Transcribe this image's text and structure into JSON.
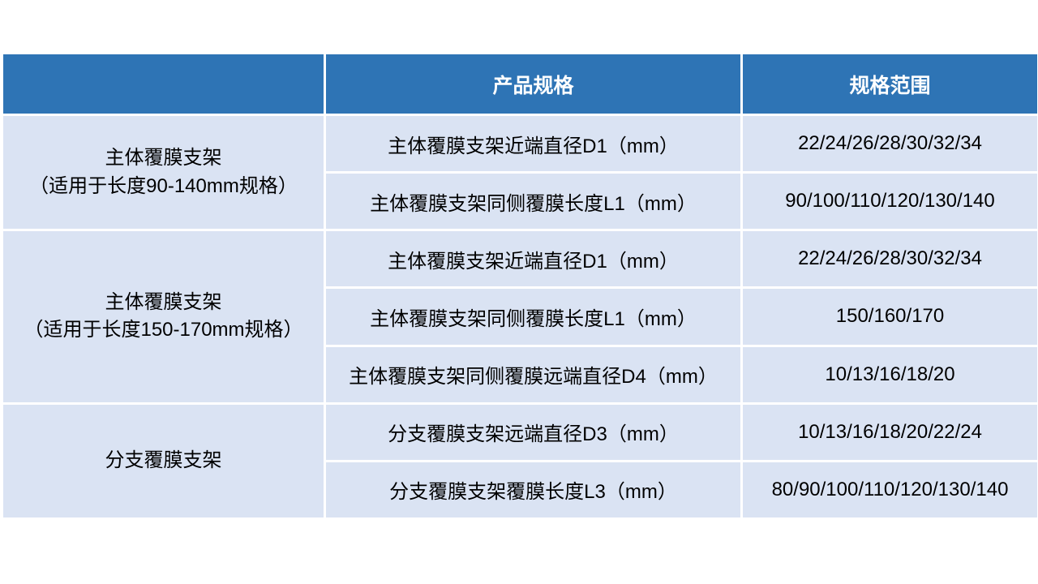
{
  "table": {
    "header": {
      "category": "",
      "product_spec": "产品规格",
      "spec_range": "规格范围"
    },
    "groups": [
      {
        "label_line1": "主体覆膜支架",
        "label_line2": "（适用于长度90-140mm规格）",
        "rows": [
          {
            "spec": "主体覆膜支架近端直径D1（mm）",
            "range": "22/24/26/28/30/32/34"
          },
          {
            "spec": "主体覆膜支架同侧覆膜长度L1（mm）",
            "range": "90/100/110/120/130/140"
          }
        ]
      },
      {
        "label_line1": "主体覆膜支架",
        "label_line2": "（适用于长度150-170mm规格）",
        "rows": [
          {
            "spec": "主体覆膜支架近端直径D1（mm）",
            "range": "22/24/26/28/30/32/34"
          },
          {
            "spec": "主体覆膜支架同侧覆膜长度L1（mm）",
            "range": "150/160/170"
          },
          {
            "spec": "主体覆膜支架同侧覆膜远端直径D4（mm）",
            "range": "10/13/16/18/20"
          }
        ]
      },
      {
        "label_line1": "分支覆膜支架",
        "label_line2": "",
        "rows": [
          {
            "spec": "分支覆膜支架远端直径D3（mm）",
            "range": "10/13/16/18/20/22/24"
          },
          {
            "spec": "分支覆膜支架覆膜长度L3（mm）",
            "range": "80/90/100/110/120/130/140"
          }
        ]
      }
    ]
  },
  "colors": {
    "header_bg": "#2E74B5",
    "header_text": "#FFFFFF",
    "row_bg": "#DAE3F3",
    "border": "#FFFFFF",
    "body_text": "#000000"
  }
}
